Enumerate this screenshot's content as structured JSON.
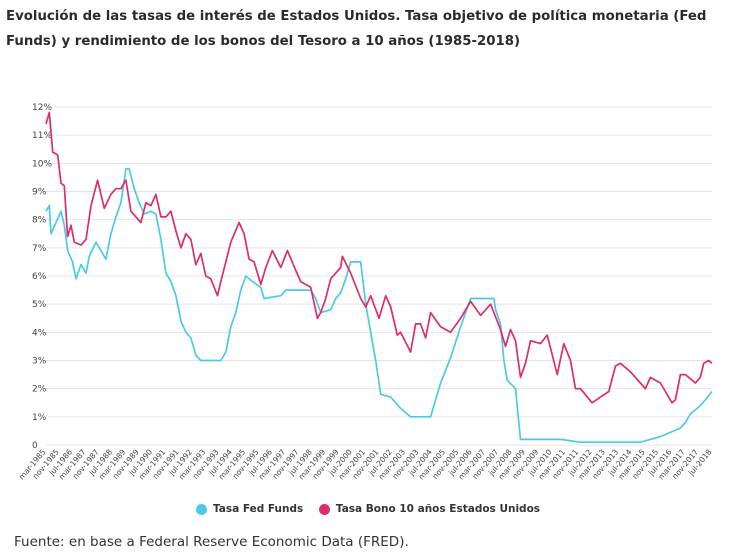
{
  "title": "Evolución de las tasas de interés de Estados Unidos. Tasa objetivo de política monetaria (Fed Funds) y rendimiento de los bonos del Tesoro a 10 años (1985-2018)",
  "source": "Fuente: en base a Federal Reserve Economic Data (FRED).",
  "colors": {
    "fed": "#4cc9e8",
    "bond": "#dd2d6b",
    "grid": "#e4e4e4"
  },
  "chart_data": {
    "type": "line",
    "ylim": [
      0,
      12
    ],
    "y_ticks": [
      "0",
      "1%",
      "2%",
      "3%",
      "4%",
      "5%",
      "6%",
      "7%",
      "8%",
      "9%",
      "10%",
      "11%",
      "12%"
    ],
    "x_tick_labels": [
      "mar-1985",
      "nov-1985",
      "jul-1986",
      "mar-1987",
      "nov-1987",
      "jul-1988",
      "mar-1989",
      "nov-1989",
      "jul-1990",
      "mar-1991",
      "nov-1991",
      "jul-1992",
      "mar-1993",
      "nov-1993",
      "jul-1994",
      "mar-1995",
      "nov-1995",
      "jul-1996",
      "mar-1997",
      "nov-1997",
      "jul-1998",
      "mar-1999",
      "nov-1999",
      "jul-2000",
      "mar-2001",
      "nov-2001",
      "jul-2002",
      "mar-2003",
      "nov-2003",
      "jul-2004",
      "mar-2005",
      "nov-2005",
      "jul-2006",
      "mar-2007",
      "nov-2007",
      "jul-2008",
      "mar-2009",
      "nov-2009",
      "jul-2010",
      "mar-2011",
      "nov-2011",
      "jul-2012",
      "mar-2013",
      "nov-2013",
      "jul-2014",
      "mar-2015",
      "nov-2015",
      "jul-2016",
      "mar-2017",
      "nov-2017",
      "jul-2018"
    ],
    "x_range": [
      "1985-03",
      "2018-07"
    ],
    "grid": true,
    "legend_position": "bottom",
    "series": [
      {
        "name": "Tasa Fed Funds",
        "points": [
          [
            "1985-03",
            8.3
          ],
          [
            "1985-05",
            8.5
          ],
          [
            "1985-06",
            7.5
          ],
          [
            "1985-09",
            7.9
          ],
          [
            "1985-12",
            8.3
          ],
          [
            "1986-02",
            7.8
          ],
          [
            "1986-04",
            6.9
          ],
          [
            "1986-07",
            6.5
          ],
          [
            "1986-09",
            5.9
          ],
          [
            "1986-12",
            6.4
          ],
          [
            "1987-03",
            6.1
          ],
          [
            "1987-05",
            6.7
          ],
          [
            "1987-09",
            7.2
          ],
          [
            "1987-12",
            6.9
          ],
          [
            "1988-03",
            6.6
          ],
          [
            "1988-06",
            7.5
          ],
          [
            "1988-09",
            8.1
          ],
          [
            "1988-12",
            8.6
          ],
          [
            "1989-03",
            9.8
          ],
          [
            "1989-05",
            9.8
          ],
          [
            "1989-08",
            9.1
          ],
          [
            "1989-11",
            8.6
          ],
          [
            "1990-02",
            8.2
          ],
          [
            "1990-06",
            8.3
          ],
          [
            "1990-09",
            8.2
          ],
          [
            "1990-12",
            7.3
          ],
          [
            "1991-03",
            6.1
          ],
          [
            "1991-06",
            5.8
          ],
          [
            "1991-09",
            5.3
          ],
          [
            "1991-12",
            4.4
          ],
          [
            "1992-03",
            4.0
          ],
          [
            "1992-06",
            3.8
          ],
          [
            "1992-09",
            3.2
          ],
          [
            "1992-12",
            3.0
          ],
          [
            "1993-06",
            3.0
          ],
          [
            "1993-12",
            3.0
          ],
          [
            "1994-03",
            3.3
          ],
          [
            "1994-06",
            4.2
          ],
          [
            "1994-09",
            4.7
          ],
          [
            "1994-12",
            5.5
          ],
          [
            "1995-03",
            6.0
          ],
          [
            "1995-07",
            5.8
          ],
          [
            "1995-12",
            5.6
          ],
          [
            "1996-02",
            5.2
          ],
          [
            "1996-12",
            5.3
          ],
          [
            "1997-03",
            5.5
          ],
          [
            "1997-12",
            5.5
          ],
          [
            "1998-06",
            5.5
          ],
          [
            "1998-09",
            5.2
          ],
          [
            "1998-12",
            4.7
          ],
          [
            "1999-06",
            4.8
          ],
          [
            "1999-09",
            5.2
          ],
          [
            "1999-12",
            5.4
          ],
          [
            "2000-03",
            5.9
          ],
          [
            "2000-06",
            6.5
          ],
          [
            "2000-12",
            6.5
          ],
          [
            "2001-03",
            5.0
          ],
          [
            "2001-06",
            4.0
          ],
          [
            "2001-09",
            3.0
          ],
          [
            "2001-12",
            1.8
          ],
          [
            "2002-06",
            1.7
          ],
          [
            "2002-12",
            1.3
          ],
          [
            "2003-06",
            1.0
          ],
          [
            "2004-06",
            1.0
          ],
          [
            "2004-09",
            1.6
          ],
          [
            "2004-12",
            2.2
          ],
          [
            "2005-06",
            3.1
          ],
          [
            "2005-12",
            4.2
          ],
          [
            "2006-06",
            5.2
          ],
          [
            "2007-08",
            5.2
          ],
          [
            "2007-09",
            4.8
          ],
          [
            "2007-12",
            4.3
          ],
          [
            "2008-02",
            3.0
          ],
          [
            "2008-04",
            2.3
          ],
          [
            "2008-09",
            2.0
          ],
          [
            "2008-12",
            0.2
          ],
          [
            "2009-06",
            0.2
          ],
          [
            "2010-12",
            0.2
          ],
          [
            "2011-12",
            0.1
          ],
          [
            "2013-06",
            0.1
          ],
          [
            "2014-12",
            0.1
          ],
          [
            "2015-12",
            0.3
          ],
          [
            "2016-12",
            0.6
          ],
          [
            "2017-03",
            0.8
          ],
          [
            "2017-06",
            1.1
          ],
          [
            "2017-12",
            1.4
          ],
          [
            "2018-03",
            1.6
          ],
          [
            "2018-07",
            1.9
          ]
        ]
      },
      {
        "name": "Tasa Bono 10 años Estados Unidos",
        "points": [
          [
            "1985-03",
            11.4
          ],
          [
            "1985-05",
            11.8
          ],
          [
            "1985-07",
            10.4
          ],
          [
            "1985-10",
            10.3
          ],
          [
            "1985-12",
            9.3
          ],
          [
            "1986-02",
            9.2
          ],
          [
            "1986-04",
            7.4
          ],
          [
            "1986-06",
            7.8
          ],
          [
            "1986-08",
            7.2
          ],
          [
            "1986-12",
            7.1
          ],
          [
            "1987-03",
            7.3
          ],
          [
            "1987-06",
            8.5
          ],
          [
            "1987-10",
            9.4
          ],
          [
            "1987-12",
            8.9
          ],
          [
            "1988-02",
            8.4
          ],
          [
            "1988-06",
            8.9
          ],
          [
            "1988-09",
            9.1
          ],
          [
            "1988-12",
            9.1
          ],
          [
            "1989-03",
            9.4
          ],
          [
            "1989-06",
            8.3
          ],
          [
            "1989-09",
            8.1
          ],
          [
            "1989-12",
            7.9
          ],
          [
            "1990-03",
            8.6
          ],
          [
            "1990-06",
            8.5
          ],
          [
            "1990-09",
            8.9
          ],
          [
            "1990-12",
            8.1
          ],
          [
            "1991-03",
            8.1
          ],
          [
            "1991-06",
            8.3
          ],
          [
            "1991-09",
            7.6
          ],
          [
            "1991-12",
            7.0
          ],
          [
            "1992-03",
            7.5
          ],
          [
            "1992-06",
            7.3
          ],
          [
            "1992-09",
            6.4
          ],
          [
            "1992-12",
            6.8
          ],
          [
            "1993-03",
            6.0
          ],
          [
            "1993-06",
            5.9
          ],
          [
            "1993-10",
            5.3
          ],
          [
            "1993-12",
            5.8
          ],
          [
            "1994-03",
            6.5
          ],
          [
            "1994-06",
            7.2
          ],
          [
            "1994-11",
            7.9
          ],
          [
            "1995-02",
            7.5
          ],
          [
            "1995-05",
            6.6
          ],
          [
            "1995-08",
            6.5
          ],
          [
            "1995-12",
            5.7
          ],
          [
            "1996-03",
            6.3
          ],
          [
            "1996-07",
            6.9
          ],
          [
            "1996-12",
            6.3
          ],
          [
            "1997-04",
            6.9
          ],
          [
            "1997-09",
            6.2
          ],
          [
            "1997-12",
            5.8
          ],
          [
            "1998-06",
            5.6
          ],
          [
            "1998-10",
            4.5
          ],
          [
            "1998-12",
            4.7
          ],
          [
            "1999-03",
            5.2
          ],
          [
            "1999-06",
            5.9
          ],
          [
            "1999-12",
            6.3
          ],
          [
            "2000-01",
            6.7
          ],
          [
            "2000-06",
            6.1
          ],
          [
            "2000-12",
            5.2
          ],
          [
            "2001-03",
            4.9
          ],
          [
            "2001-06",
            5.3
          ],
          [
            "2001-11",
            4.5
          ],
          [
            "2002-03",
            5.3
          ],
          [
            "2002-06",
            4.9
          ],
          [
            "2002-10",
            3.9
          ],
          [
            "2002-12",
            4.0
          ],
          [
            "2003-06",
            3.3
          ],
          [
            "2003-09",
            4.3
          ],
          [
            "2003-12",
            4.3
          ],
          [
            "2004-03",
            3.8
          ],
          [
            "2004-06",
            4.7
          ],
          [
            "2004-12",
            4.2
          ],
          [
            "2005-06",
            4.0
          ],
          [
            "2005-12",
            4.5
          ],
          [
            "2006-06",
            5.1
          ],
          [
            "2006-12",
            4.6
          ],
          [
            "2007-06",
            5.0
          ],
          [
            "2007-12",
            4.1
          ],
          [
            "2008-03",
            3.5
          ],
          [
            "2008-06",
            4.1
          ],
          [
            "2008-09",
            3.7
          ],
          [
            "2008-12",
            2.4
          ],
          [
            "2009-03",
            2.9
          ],
          [
            "2009-06",
            3.7
          ],
          [
            "2009-12",
            3.6
          ],
          [
            "2010-04",
            3.9
          ],
          [
            "2010-10",
            2.5
          ],
          [
            "2011-02",
            3.6
          ],
          [
            "2011-06",
            3.0
          ],
          [
            "2011-09",
            2.0
          ],
          [
            "2011-12",
            2.0
          ],
          [
            "2012-07",
            1.5
          ],
          [
            "2012-12",
            1.7
          ],
          [
            "2013-05",
            1.9
          ],
          [
            "2013-09",
            2.8
          ],
          [
            "2013-12",
            2.9
          ],
          [
            "2014-06",
            2.6
          ],
          [
            "2014-12",
            2.2
          ],
          [
            "2015-03",
            2.0
          ],
          [
            "2015-06",
            2.4
          ],
          [
            "2015-12",
            2.2
          ],
          [
            "2016-03",
            1.9
          ],
          [
            "2016-07",
            1.5
          ],
          [
            "2016-09",
            1.6
          ],
          [
            "2016-12",
            2.5
          ],
          [
            "2017-03",
            2.5
          ],
          [
            "2017-09",
            2.2
          ],
          [
            "2017-12",
            2.4
          ],
          [
            "2018-02",
            2.9
          ],
          [
            "2018-05",
            3.0
          ],
          [
            "2018-07",
            2.9
          ]
        ]
      }
    ]
  }
}
